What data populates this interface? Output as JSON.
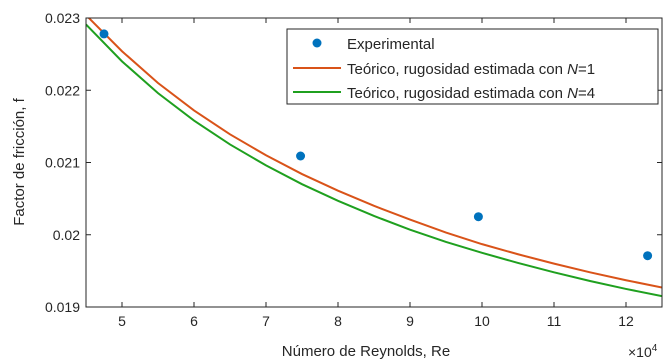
{
  "chart_data": {
    "type": "line",
    "xlabel": "Número de Reynolds, Re",
    "ylabel": "Factor de fricción, f",
    "x_multiplier": "×10",
    "x_multiplier_exp": "4",
    "xlim": [
      4.5,
      12.5
    ],
    "ylim": [
      0.019,
      0.023
    ],
    "xticks": [
      5,
      6,
      7,
      8,
      9,
      10,
      11,
      12
    ],
    "xtick_labels": [
      "5",
      "6",
      "7",
      "8",
      "9",
      "10",
      "11",
      "12"
    ],
    "yticks": [
      0.019,
      0.02,
      0.021,
      0.022,
      0.023
    ],
    "ytick_labels": [
      "0.019",
      "0.02",
      "0.021",
      "0.022",
      "0.023"
    ],
    "grid": false,
    "legend_position": "top-right",
    "series": [
      {
        "name": "Experimental",
        "kind": "scatter",
        "color": "#0072BD",
        "x": [
          4.75,
          7.48,
          9.95,
          12.3
        ],
        "y": [
          0.02278,
          0.02109,
          0.02025,
          0.01971
        ]
      },
      {
        "name": "Teórico, rugosidad estimada con N=1",
        "name_parts": [
          "Teórico, rugosidad estimada con ",
          "N",
          "=1"
        ],
        "kind": "line",
        "color": "#D95319",
        "x": [
          4.5,
          5.0,
          5.5,
          6.0,
          6.5,
          7.0,
          7.5,
          8.0,
          8.5,
          9.0,
          9.5,
          10.0,
          10.5,
          11.0,
          11.5,
          12.0,
          12.5
        ],
        "y": [
          0.02304,
          0.02254,
          0.0221,
          0.02172,
          0.02139,
          0.0211,
          0.02084,
          0.02061,
          0.0204,
          0.02021,
          0.02003,
          0.01987,
          0.01973,
          0.0196,
          0.01948,
          0.01937,
          0.01927
        ]
      },
      {
        "name": "Teórico, rugosidad estimada con N=4",
        "name_parts": [
          "Teórico, rugosidad estimada con ",
          "N",
          "=4"
        ],
        "kind": "line",
        "color": "#1FA01F",
        "x": [
          4.5,
          5.0,
          5.5,
          6.0,
          6.5,
          7.0,
          7.5,
          8.0,
          8.5,
          9.0,
          9.5,
          10.0,
          10.5,
          11.0,
          11.5,
          12.0,
          12.5
        ],
        "y": [
          0.02291,
          0.0224,
          0.02196,
          0.02158,
          0.02125,
          0.02096,
          0.0207,
          0.02047,
          0.02026,
          0.02007,
          0.0199,
          0.01975,
          0.01961,
          0.01948,
          0.01936,
          0.01925,
          0.01915
        ]
      }
    ]
  }
}
